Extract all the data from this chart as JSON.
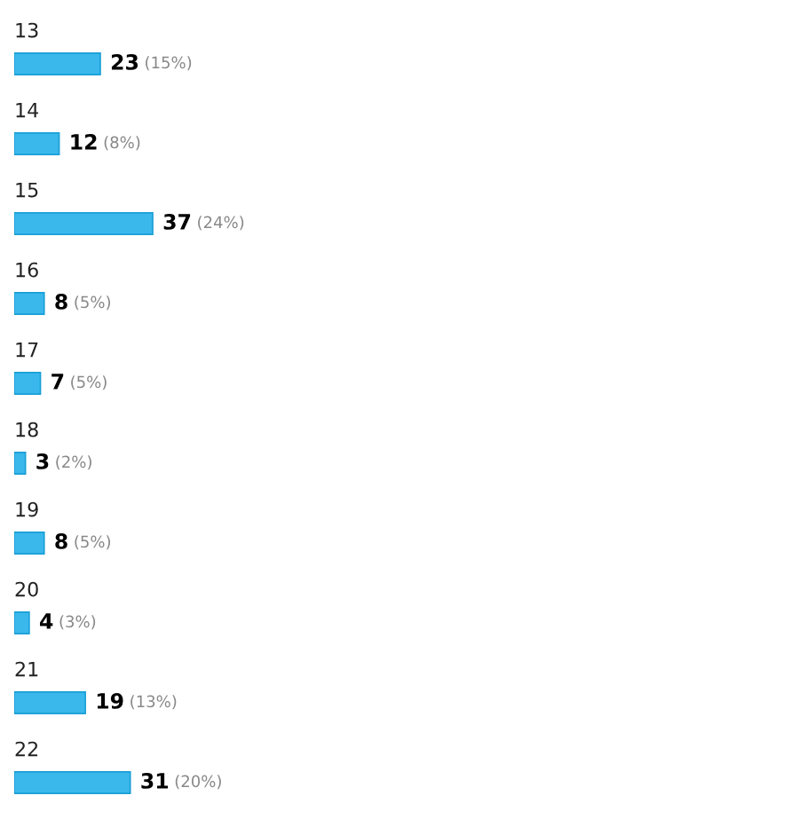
{
  "chart_data": {
    "type": "bar",
    "orientation": "horizontal",
    "categories": [
      "13",
      "14",
      "15",
      "16",
      "17",
      "18",
      "19",
      "20",
      "21",
      "22"
    ],
    "values": [
      23,
      12,
      37,
      8,
      7,
      3,
      8,
      4,
      19,
      31
    ],
    "value_labels": [
      "23 (15%)",
      "12 (8%)",
      "37 (24%)",
      "8 (5%)",
      "7 (5%)",
      "3 (2%)",
      "8 (5%)",
      "4 (3%)",
      "19 (13%)",
      "31 (20%)"
    ],
    "color": "#3ab8ec"
  }
}
